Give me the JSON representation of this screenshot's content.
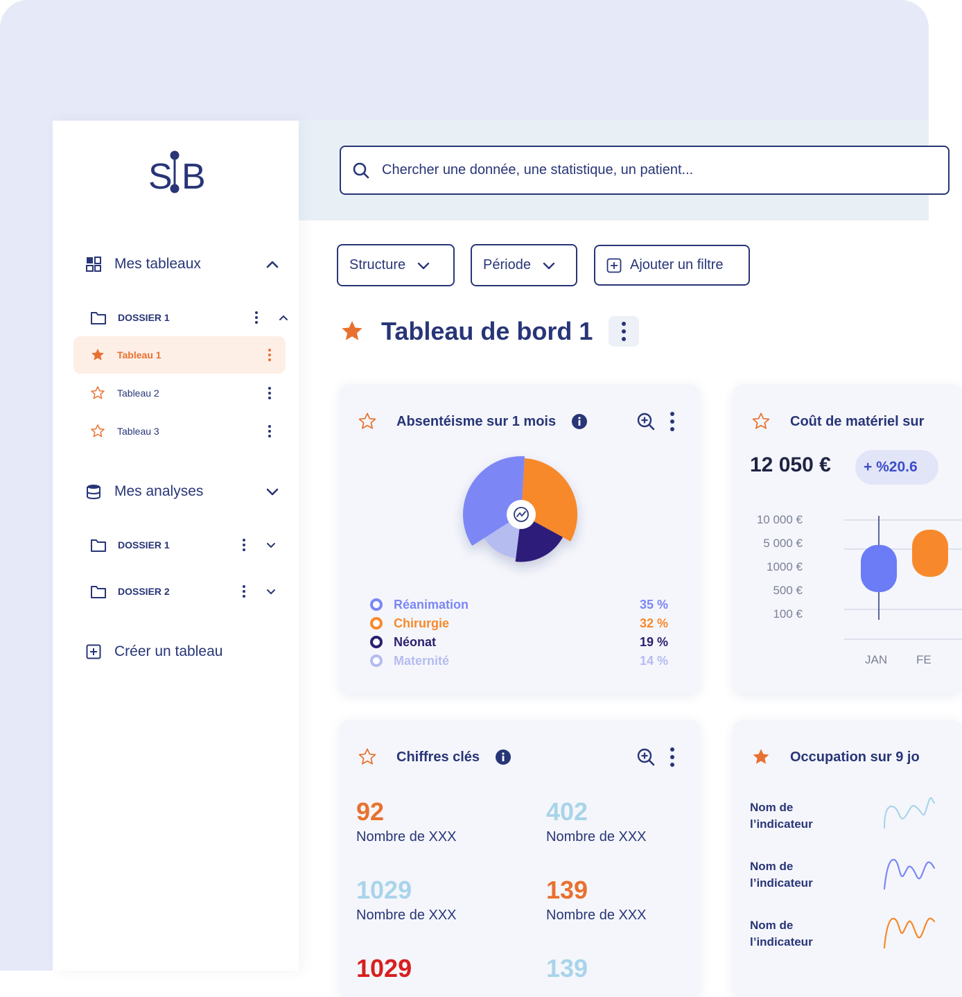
{
  "logo": "SIB",
  "sidebar": {
    "section1": {
      "label": "Mes tableaux"
    },
    "folder1": {
      "label": "DOSSIER 1"
    },
    "tabs": [
      {
        "label": "Tableau 1"
      },
      {
        "label": "Tableau 2"
      },
      {
        "label": "Tableau 3"
      }
    ],
    "section2": {
      "label": "Mes analyses"
    },
    "analysis_folders": [
      {
        "label": "DOSSIER 1"
      },
      {
        "label": "DOSSIER 2"
      }
    ],
    "create": {
      "label": "Créer un tableau"
    }
  },
  "search": {
    "placeholder": "Chercher une donnée, une statistique, un patient..."
  },
  "filters": {
    "structure": "Structure",
    "periode": "Période",
    "add": "Ajouter un filtre"
  },
  "page": {
    "title": "Tableau de bord 1"
  },
  "cards": {
    "absenteeism": {
      "title": "Absentéisme sur 1 mois"
    },
    "cost": {
      "title": "Coût de matériel sur",
      "value": "12 050 €",
      "delta": "+ %20.6"
    },
    "kpis": {
      "title": "Chiffres clés"
    },
    "occupation": {
      "title": "Occupation sur 9 jo"
    }
  },
  "chart_data": [
    {
      "type": "pie",
      "categories": [
        "Réanimation",
        "Chirurgie",
        "Néonat",
        "Maternité"
      ],
      "values": [
        35,
        32,
        19,
        14
      ],
      "labels": [
        "35 %",
        "32 %",
        "19 %",
        "14 %"
      ],
      "colors": [
        "#7b87f5",
        "#f7892c",
        "#2f1f7a",
        "#b5bcf0"
      ]
    },
    {
      "type": "bar",
      "yticks": [
        "10 000 €",
        "5 000 €",
        "1000 €",
        "500 €",
        "100 €"
      ],
      "categories": [
        "JAN",
        "FE"
      ]
    }
  ],
  "kpis": [
    {
      "value": "92",
      "label": "Nombre de XXX",
      "color": "#e8712f"
    },
    {
      "value": "402",
      "label": "Nombre de XXX",
      "color": "#a9d4ea"
    },
    {
      "value": "1029",
      "label": "Nombre de XXX",
      "color": "#a9d4ea"
    },
    {
      "value": "139",
      "label": "Nombre de XXX",
      "color": "#e8712f"
    },
    {
      "value": "1029",
      "label": "",
      "color": "#d71f1f"
    },
    {
      "value": "139",
      "label": "",
      "color": "#a9d4ea"
    }
  ],
  "indicators": [
    {
      "label": "Nom de l’indicateur",
      "color": "#a9d4ea"
    },
    {
      "label": "Nom de l’indicateur",
      "color": "#7b87f5"
    },
    {
      "label": "Nom de l’indicateur",
      "color": "#f7892c"
    }
  ],
  "colors": {
    "navy": "#283577",
    "orange": "#e8712f",
    "blue": "#7b87f5"
  }
}
